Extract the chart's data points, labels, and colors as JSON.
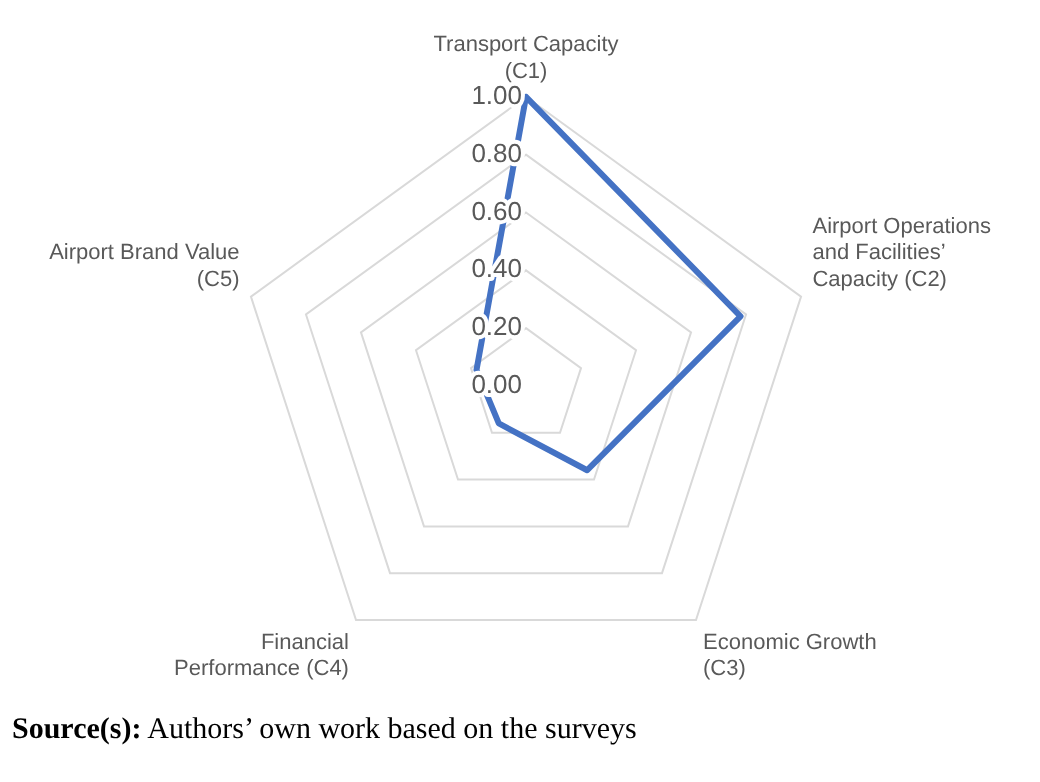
{
  "chart_data": {
    "type": "radar",
    "categories": [
      "Transport Capacity (C1)",
      "Airport Operations and Facilities’ Capacity (C2)",
      "Economic Growth (C3)",
      "Financial Performance (C4)",
      "Airport Brand Value (C5)"
    ],
    "series": [
      {
        "color": "#4472c4",
        "values": [
          1.0,
          0.78,
          0.36,
          0.16,
          0.18
        ]
      }
    ],
    "ylim": [
      0,
      1
    ],
    "yticks": [
      {
        "value": 0,
        "label": "0.00"
      },
      {
        "value": 0.2,
        "label": "0.20"
      },
      {
        "value": 0.4,
        "label": "0.40"
      },
      {
        "value": 0.6,
        "label": "0.60"
      },
      {
        "value": 0.8,
        "label": "0.80"
      },
      {
        "value": 1,
        "label": "1.00"
      }
    ],
    "grid": true,
    "legend": false,
    "marker": "none",
    "line_style": "solid",
    "annotations": [
      "Source(s): Authors’ own work based on the surveys"
    ]
  }
}
